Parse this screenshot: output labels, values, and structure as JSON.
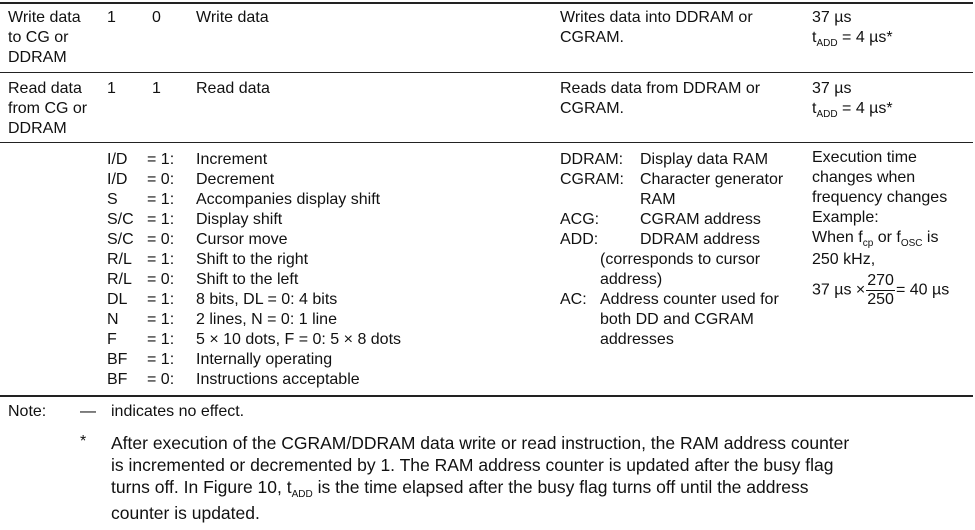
{
  "rows": [
    {
      "name": [
        "Write data",
        "to CG or",
        "DDRAM"
      ],
      "rs": "1",
      "rw": "0",
      "code": "Write data",
      "description": [
        "Writes data into DDRAM or",
        "CGRAM."
      ],
      "time": "37 µs",
      "tadd_t": "t",
      "tadd_sub": "ADD",
      "tadd_val": " = 4 µs*"
    },
    {
      "name": [
        "Read data",
        "from CG or",
        "DDRAM"
      ],
      "rs": "1",
      "rw": "1",
      "code": "Read data",
      "description": [
        "Reads data from DDRAM or",
        "CGRAM."
      ],
      "time": "37 µs",
      "tadd_t": "t",
      "tadd_sub": "ADD",
      "tadd_val": " = 4 µs*"
    }
  ],
  "legend": [
    {
      "flag": "I/D",
      "eq": "= 1:",
      "desc": "Increment"
    },
    {
      "flag": "I/D",
      "eq": "= 0:",
      "desc": "Decrement"
    },
    {
      "flag": "S",
      "eq": "= 1:",
      "desc": "Accompanies display shift"
    },
    {
      "flag": "S/C",
      "eq": "= 1:",
      "desc": "Display shift"
    },
    {
      "flag": "S/C",
      "eq": "= 0:",
      "desc": "Cursor move"
    },
    {
      "flag": "R/L",
      "eq": "= 1:",
      "desc": "Shift to the right"
    },
    {
      "flag": "R/L",
      "eq": "= 0:",
      "desc": "Shift to the left"
    },
    {
      "flag": "DL",
      "eq": "= 1:",
      "desc": "8 bits, DL = 0:  4 bits"
    },
    {
      "flag": "N",
      "eq": "= 1:",
      "desc": "2 lines, N = 0:  1 line"
    },
    {
      "flag": "F",
      "eq": "= 1:",
      "desc": "5 × 10 dots, F = 0:  5 × 8 dots"
    },
    {
      "flag": "BF",
      "eq": "= 1:",
      "desc": "Internally operating"
    },
    {
      "flag": "BF",
      "eq": "= 0:",
      "desc": "Instructions acceptable"
    }
  ],
  "abbrev": {
    "ddram_key": "DDRAM:",
    "ddram_val": "Display data RAM",
    "cgram_key": "CGRAM:",
    "cgram_val": [
      "Character generator",
      "RAM"
    ],
    "acg_key": "ACG:",
    "acg_val": "CGRAM address",
    "add_key": "ADD:",
    "add_val": "DDRAM address",
    "add_note": [
      "(corresponds to cursor",
      "address)"
    ],
    "ac_key": "AC:",
    "ac_val": [
      "Address counter used for",
      "both DD and CGRAM",
      "addresses"
    ]
  },
  "exec": {
    "lines": [
      "Execution time",
      "changes when",
      "frequency changes",
      "Example:"
    ],
    "when_pre": "When f",
    "fcp_sub": "cp",
    "or_text": " or f",
    "fosc_sub": "OSC",
    "is_text": " is",
    "freq": "250 kHz,",
    "eq_left": "37 µs ×",
    "num": "270",
    "den": "250",
    "eq_right": "= 40 µs"
  },
  "notes": {
    "label": "Note:",
    "dash": "—",
    "dash_text": "indicates no effect.",
    "star": "*",
    "star_lines": [
      "After execution of the CGRAM/DDRAM data write or read instruction, the RAM address counter",
      "is incremented or decremented by 1. The RAM address counter is updated after the busy flag"
    ],
    "line3_pre": "turns off. In Figure 10, t",
    "line3_sub": "ADD",
    "line3_post": " is the time elapsed after the busy flag turns off until the address",
    "line4": "counter is updated."
  }
}
